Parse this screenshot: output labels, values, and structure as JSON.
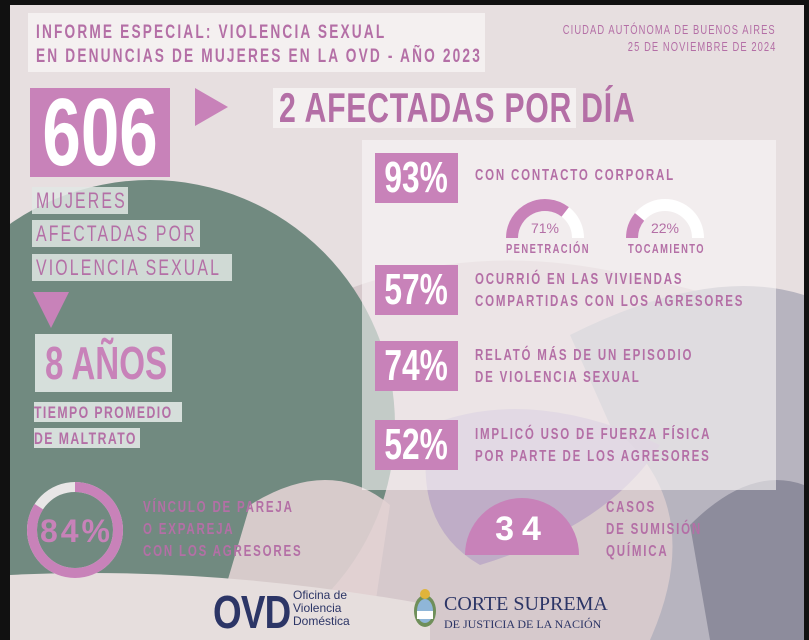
{
  "colors": {
    "accent": "#c882b9",
    "text": "#b46fa6",
    "green": "#718a80",
    "background": "#e7dfe0",
    "navy": "#2c3566"
  },
  "header": {
    "title_line1": "INFORME ESPECIAL: VIOLENCIA SEXUAL",
    "title_line2": "EN DENUNCIAS DE MUJERES EN LA OVD - AÑO 2023",
    "location": "CIUDAD AUTÓNOMA DE BUENOS AIRES",
    "date": "25 DE NOVIEMBRE DE 2024"
  },
  "main": {
    "total": "606",
    "total_label": [
      "MUJERES",
      "AFECTADAS POR",
      "VIOLENCIA SEXUAL"
    ],
    "per_day": "2 AFECTADAS POR DÍA",
    "years": "8 AÑOS",
    "years_label": [
      "TIEMPO PROMEDIO",
      "DE MALTRATO"
    ]
  },
  "stats": [
    {
      "value": "93%",
      "lines": [
        "CON CONTACTO CORPORAL"
      ]
    },
    {
      "value": "57%",
      "lines": [
        "OCURRIÓ EN LAS VIVIENDAS",
        "COMPARTIDAS CON LOS AGRESORES"
      ]
    },
    {
      "value": "74%",
      "lines": [
        "RELATÓ MÁS DE UN EPISODIO",
        "DE VIOLENCIA SEXUAL"
      ]
    },
    {
      "value": "52%",
      "lines": [
        "IMPLICÓ USO DE FUERZA FÍSICA",
        "POR PARTE DE LOS AGRESORES"
      ]
    }
  ],
  "gauges": [
    {
      "value": "71%",
      "fraction": 0.71,
      "label": "PENETRACIÓN"
    },
    {
      "value": "22%",
      "fraction": 0.22,
      "label": "TOCAMIENTO"
    }
  ],
  "partner": {
    "value": "84%",
    "fraction": 0.84,
    "lines": [
      "VÍNCULO DE PAREJA",
      "O EXPAREJA",
      "CON LOS AGRESORES"
    ]
  },
  "chemical": {
    "value": "34",
    "lines": [
      "CASOS",
      "DE SUMISIÓN",
      "QUÍMICA"
    ]
  },
  "footer": {
    "ovd_logo": "OVD",
    "ovd_name": [
      "Oficina de",
      "Violencia",
      "Doméstica"
    ],
    "court_line1": "CORTE SUPREMA",
    "court_line2": "DE JUSTICIA DE LA NACIÓN"
  }
}
